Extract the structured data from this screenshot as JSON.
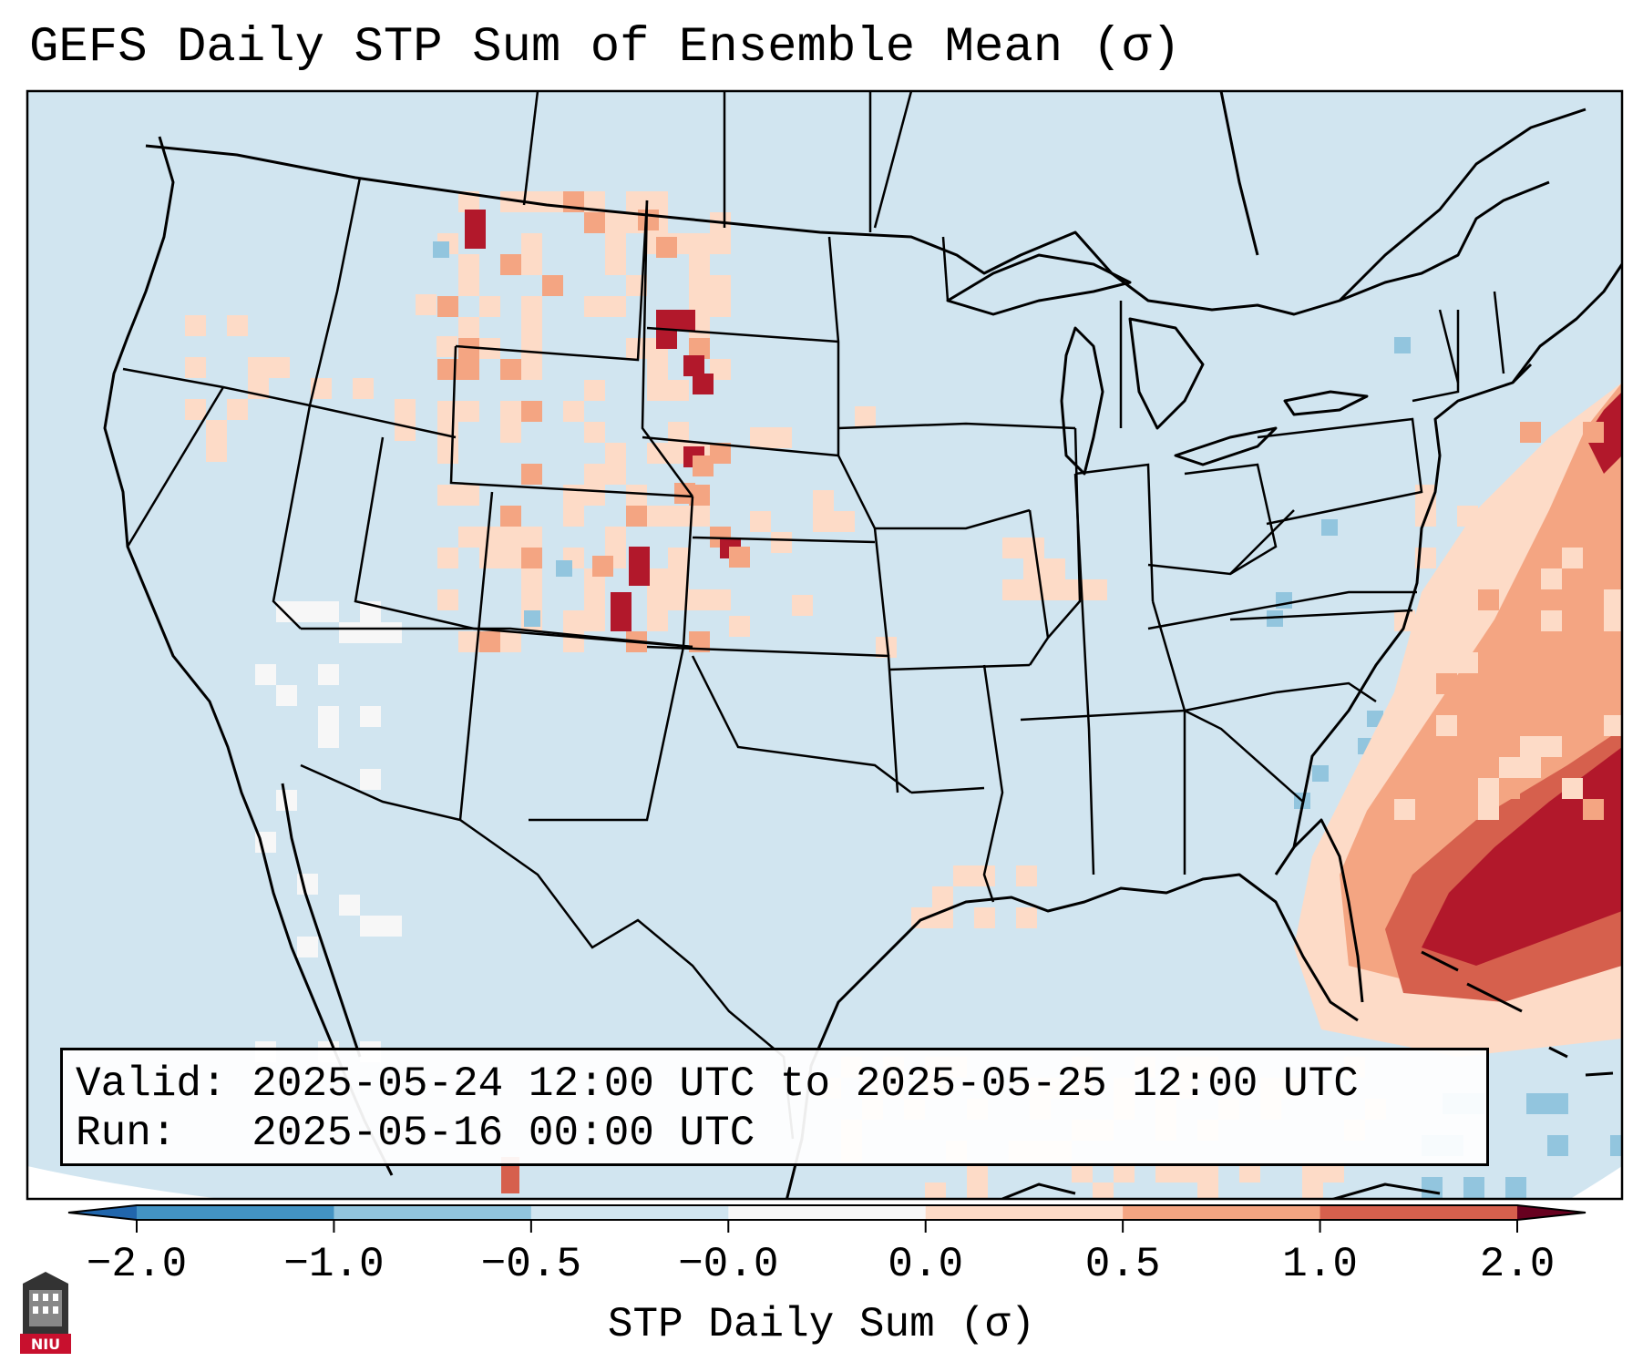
{
  "title": "GEFS Daily STP Sum of Ensemble Mean (σ)",
  "info": {
    "valid_line": "Valid: 2025-05-24 12:00 UTC to 2025-05-25 12:00 UTC",
    "run_line": "Run:   2025-05-16 00:00 UTC"
  },
  "colorbar": {
    "label": "STP Daily Sum (σ)",
    "ticks": [
      "−2.0",
      "−1.0",
      "−0.5",
      "−0.0",
      "0.0",
      "0.5",
      "1.0",
      "2.0"
    ],
    "colors": [
      "#4393c3",
      "#92c5de",
      "#d1e5f0",
      "#f7f7f7",
      "#fddbc7",
      "#f4a582",
      "#d6604d",
      "#b2182b"
    ],
    "extend": "both"
  },
  "map": {
    "background_color": "#d1e5f0",
    "outline_color": "#000000",
    "region": "Continental United States, northern Mexico, southern Canada, western Atlantic"
  },
  "logo": {
    "text": "NIU",
    "color": "#c8102e"
  }
}
